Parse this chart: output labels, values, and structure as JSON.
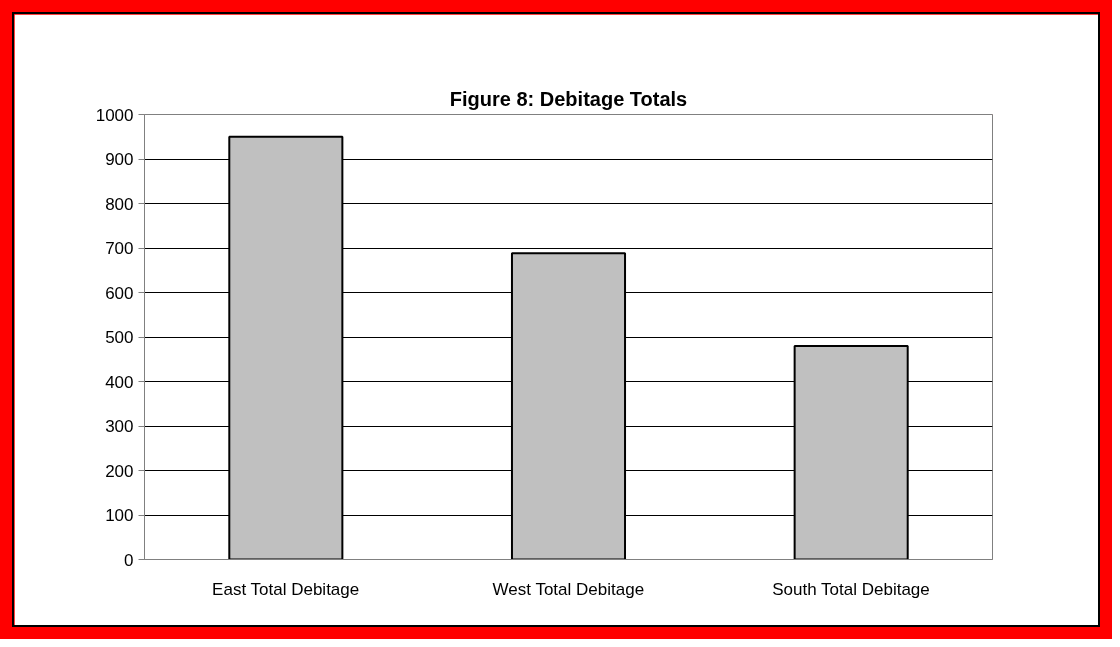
{
  "chart_data": {
    "type": "bar",
    "title": "Figure 8: Debitage Totals",
    "categories": [
      "East Total Debitage",
      "West Total Debitage",
      "South Total Debitage"
    ],
    "values": [
      950,
      688,
      480
    ],
    "color": "#c0c0c0",
    "ylim": [
      0,
      1000
    ],
    "yticks": [
      0,
      100,
      200,
      300,
      400,
      500,
      600,
      700,
      800,
      900,
      1000
    ],
    "grid": "y"
  }
}
